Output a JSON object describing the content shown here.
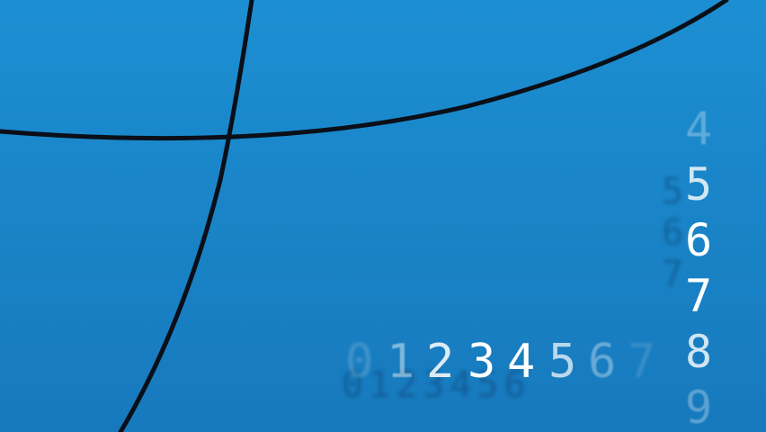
{
  "background_color": "#1a86c8",
  "line_color": "#0a0f18",
  "digit_color": "#ffffff",
  "row_digits": [
    "0",
    "1",
    "2",
    "3",
    "4",
    "5",
    "6",
    "7"
  ],
  "column_digits": [
    "4",
    "5",
    "6",
    "7",
    "8",
    "9"
  ]
}
